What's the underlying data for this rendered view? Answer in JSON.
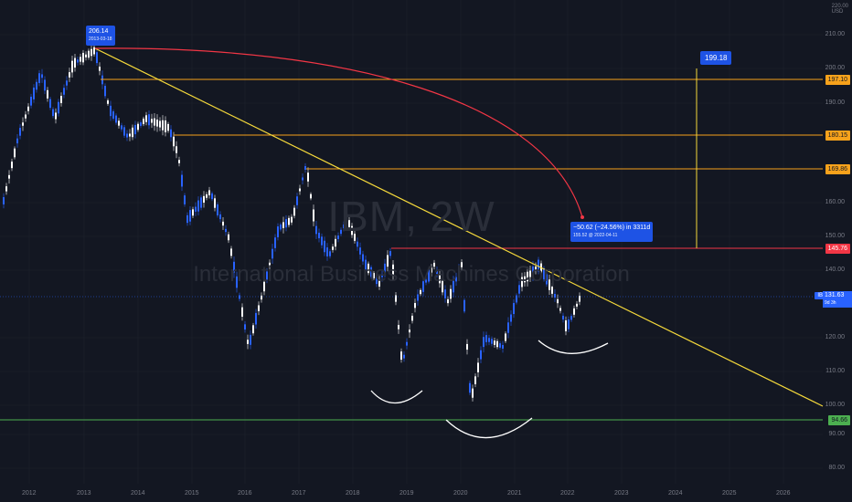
{
  "watermark": {
    "ticker": "IBM, 2W",
    "description": "International Business Machines Corporation"
  },
  "axis": {
    "currency": "USD",
    "top_price": "220.00",
    "price_ticks": [
      "210.00",
      "200.00",
      "190.00",
      "160.00",
      "150.00",
      "140.00",
      "120.00",
      "110.00",
      "100.00",
      "90.00",
      "80.00"
    ],
    "time_ticks": [
      "2012",
      "2013",
      "2014",
      "2015",
      "2016",
      "2017",
      "2018",
      "2019",
      "2020",
      "2021",
      "2022",
      "2023",
      "2024",
      "2025",
      "2026"
    ]
  },
  "levels": [
    {
      "label": "197.10",
      "color": "#f7a21b"
    },
    {
      "label": "180.15",
      "color": "#f7a21b"
    },
    {
      "label": "169.86",
      "color": "#f7a21b"
    },
    {
      "label": "145.76",
      "color": "#f23645"
    },
    {
      "label": "94.66",
      "color": "#4caf50"
    }
  ],
  "current": {
    "symbol": "IBM",
    "price": "131.63",
    "countdown": "9d 3h"
  },
  "callouts": {
    "high": {
      "value": "206.14",
      "date": "2013-03-18"
    },
    "target": {
      "value": "199.18"
    },
    "measure": {
      "line1": "−50.62 (−24.56%) in 3311d",
      "line2": "155.52 @ 2022-04-11"
    }
  },
  "colors": {
    "background": "#131722",
    "candle": "#2962ff",
    "trendline": "#f5d93b",
    "arc": "#f23645",
    "level_orange": "#f7a21b",
    "level_red": "#f23645",
    "level_green": "#4caf50"
  }
}
